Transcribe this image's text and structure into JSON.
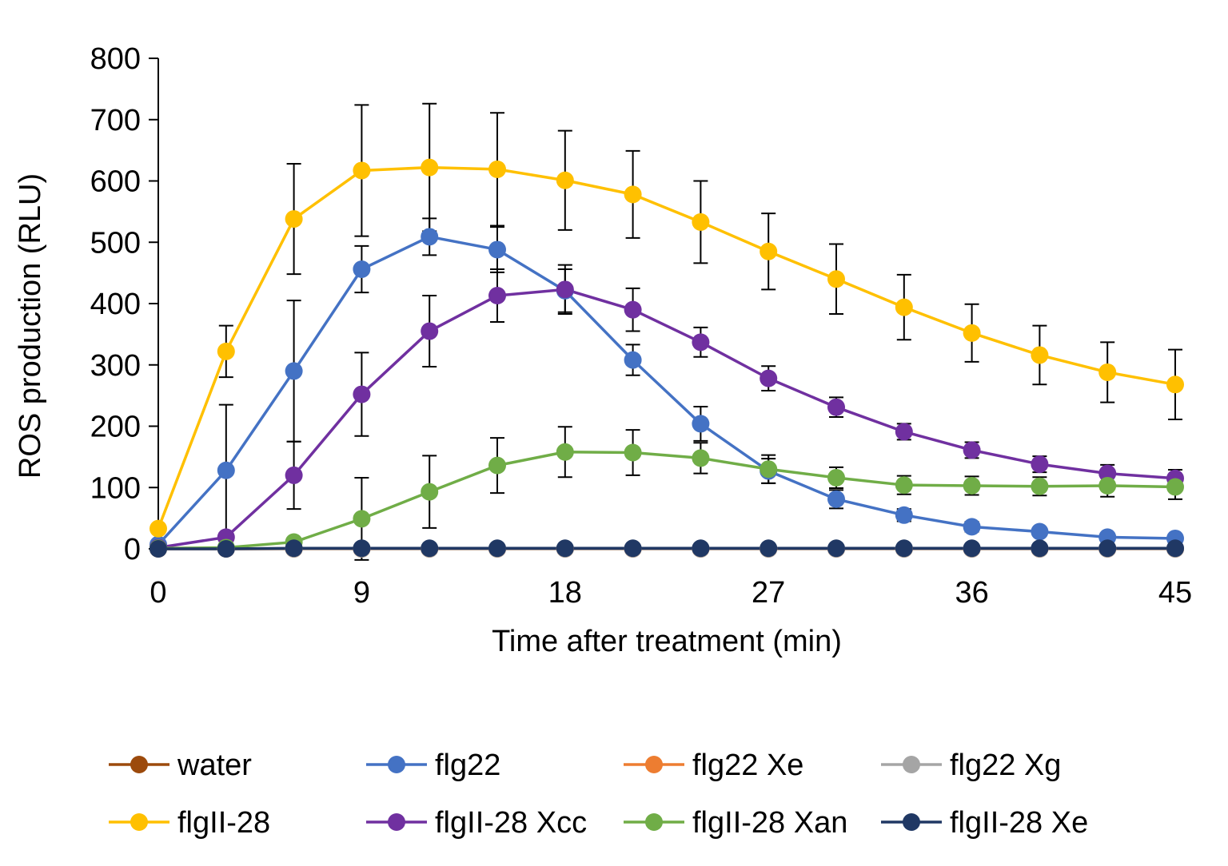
{
  "chart_data": {
    "type": "line",
    "title": "",
    "xlabel": "Time after treatment (min)",
    "ylabel": "ROS production (RLU)",
    "xlim": [
      0,
      45
    ],
    "ylim": [
      0,
      800
    ],
    "xticks": [
      0,
      9,
      18,
      27,
      36,
      45
    ],
    "yticks": [
      0,
      100,
      200,
      300,
      400,
      500,
      600,
      700,
      800
    ],
    "x": [
      0,
      3,
      6,
      9,
      12,
      15,
      18,
      21,
      24,
      27,
      30,
      33,
      36,
      39,
      42,
      45
    ],
    "grid": false,
    "legend_position": "bottom",
    "series": [
      {
        "name": "water",
        "color": "#9C4A0C",
        "values": [
          0,
          0,
          0,
          0,
          0,
          0,
          0,
          0,
          0,
          0,
          0,
          0,
          0,
          0,
          0,
          0
        ],
        "errors": [
          0,
          0,
          0,
          0,
          0,
          0,
          0,
          0,
          0,
          0,
          0,
          0,
          0,
          0,
          0,
          0
        ]
      },
      {
        "name": "flg22",
        "color": "#4472C4",
        "values": [
          7,
          128,
          290,
          456,
          509,
          488,
          421,
          308,
          204,
          127,
          81,
          55,
          36,
          28,
          19,
          17
        ],
        "errors": [
          3,
          107,
          115,
          38,
          30,
          37,
          35,
          25,
          28,
          20,
          15,
          10,
          8,
          6,
          5,
          4
        ]
      },
      {
        "name": "flg22 Xe",
        "color": "#ED7D31",
        "values": [
          0,
          0,
          0,
          0,
          0,
          0,
          0,
          0,
          0,
          0,
          0,
          0,
          0,
          0,
          0,
          0
        ],
        "errors": [
          0,
          0,
          0,
          0,
          0,
          0,
          0,
          0,
          0,
          0,
          0,
          0,
          0,
          0,
          0,
          0
        ]
      },
      {
        "name": "flg22 Xg",
        "color": "#A5A5A5",
        "values": [
          0,
          0,
          0,
          0,
          0,
          0,
          0,
          0,
          0,
          0,
          0,
          0,
          0,
          0,
          0,
          0
        ],
        "errors": [
          0,
          0,
          0,
          0,
          0,
          0,
          0,
          0,
          0,
          0,
          0,
          0,
          0,
          0,
          0,
          0
        ]
      },
      {
        "name": "flgII-28",
        "color": "#FFC000",
        "values": [
          33,
          322,
          538,
          617,
          622,
          619,
          601,
          578,
          533,
          485,
          440,
          394,
          352,
          316,
          288,
          268
        ],
        "errors": [
          3,
          42,
          90,
          107,
          104,
          92,
          81,
          71,
          67,
          62,
          57,
          53,
          47,
          48,
          49,
          57
        ]
      },
      {
        "name": "flgII-28 Xcc",
        "color": "#7030A0",
        "values": [
          2,
          19,
          120,
          252,
          355,
          413,
          423,
          390,
          337,
          278,
          231,
          191,
          161,
          138,
          123,
          115
        ],
        "errors": [
          1,
          5,
          55,
          68,
          58,
          43,
          40,
          35,
          24,
          20,
          16,
          13,
          13,
          13,
          14,
          14
        ]
      },
      {
        "name": "flgII-28 Xan",
        "color": "#70AD47",
        "values": [
          1,
          2,
          11,
          49,
          93,
          136,
          158,
          157,
          148,
          130,
          116,
          104,
          103,
          102,
          103,
          101
        ],
        "errors": [
          1,
          1,
          5,
          67,
          59,
          45,
          41,
          37,
          25,
          23,
          17,
          15,
          15,
          15,
          18,
          20
        ]
      },
      {
        "name": "flgII-28 Xe",
        "color": "#203864",
        "values": [
          0,
          0,
          1,
          1,
          1,
          1,
          1,
          1,
          1,
          1,
          1,
          1,
          1,
          1,
          1,
          1
        ],
        "errors": [
          0,
          0,
          0,
          0,
          0,
          0,
          0,
          0,
          0,
          0,
          0,
          0,
          0,
          0,
          0,
          0
        ]
      }
    ]
  }
}
